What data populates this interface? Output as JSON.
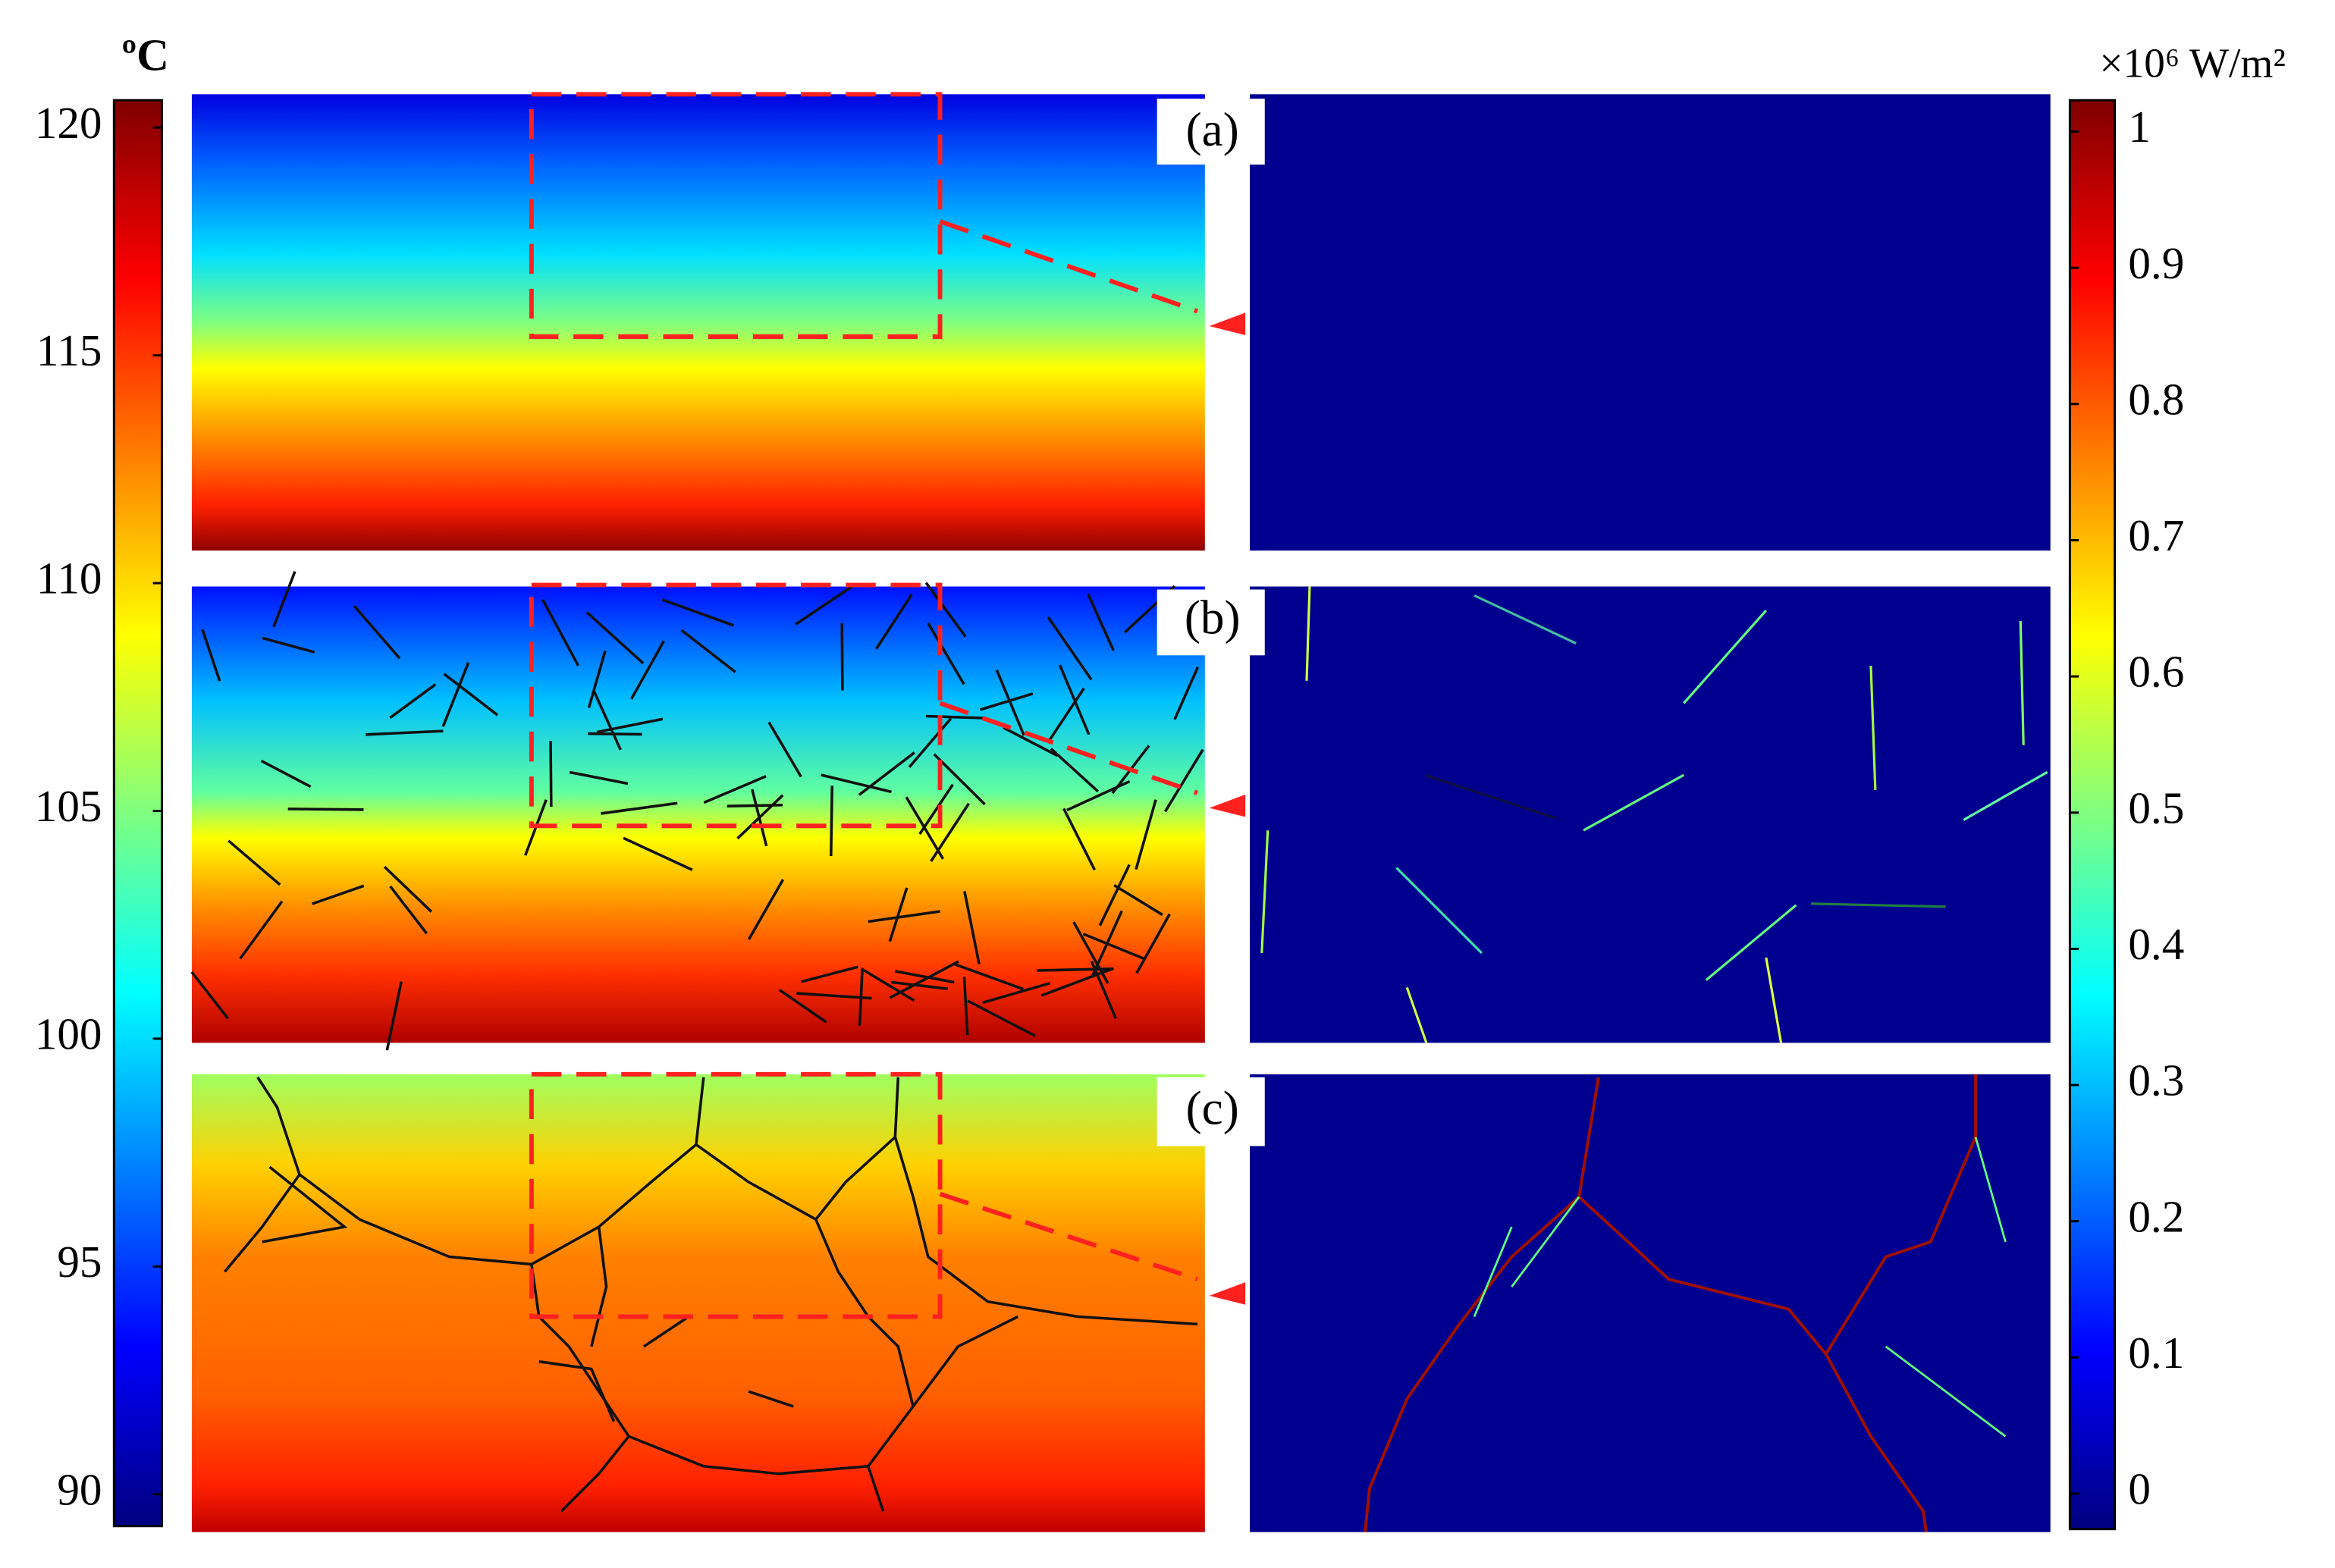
{
  "temperature_colorbar": {
    "unit": "ºC",
    "lim": [
      89.3,
      120.6
    ],
    "ticks": [
      90,
      95,
      100,
      105,
      110,
      115,
      120
    ]
  },
  "heat_flux_colorbar": {
    "unit": "×10⁶ W/m²",
    "lim": [
      -0.026,
      1.023
    ],
    "ticks": [
      0,
      0.1,
      0.2,
      0.3,
      0.4,
      0.5,
      0.6,
      0.7,
      0.8,
      0.9,
      1
    ]
  },
  "panels": [
    {
      "label": "(a)"
    },
    {
      "label": "(b)"
    },
    {
      "label": "(c)"
    }
  ]
}
